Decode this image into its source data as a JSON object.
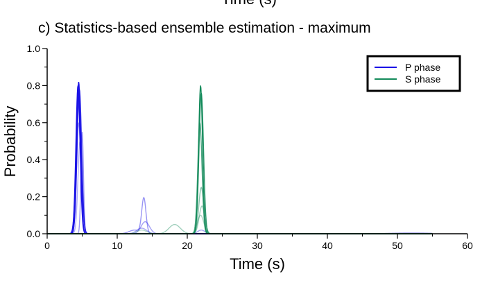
{
  "header_fragment": "Time (s)",
  "chart_data": {
    "type": "line",
    "title": "c) Statistics-based ensemble estimation - maximum",
    "xlabel": "Time (s)",
    "ylabel": "Probability",
    "xlim": [
      0,
      60
    ],
    "ylim": [
      0,
      1.0
    ],
    "xticks": [
      0,
      10,
      20,
      30,
      40,
      50,
      60
    ],
    "xtick_labels": [
      "0",
      "10",
      "20",
      "30",
      "40",
      "50",
      "60"
    ],
    "yticks": [
      0.0,
      0.2,
      0.4,
      0.6,
      0.8,
      1.0
    ],
    "ytick_labels": [
      "0.0",
      "0.2",
      "0.4",
      "0.6",
      "0.8",
      "1.0"
    ],
    "grid": false,
    "legend_position": "top-right",
    "colors": {
      "p_phase": "#1a12e6",
      "s_phase": "#138a5a"
    },
    "legend": [
      {
        "label": "P phase",
        "color": "#1a12e6"
      },
      {
        "label": "S phase",
        "color": "#138a5a"
      }
    ],
    "series": [
      {
        "name": "P phase",
        "color": "#1a12e6",
        "opacity": 1.0,
        "peaks": [
          {
            "center": 4.5,
            "height": 0.82,
            "width": 0.28
          }
        ]
      },
      {
        "color": "#1a12e6",
        "opacity": 1.0,
        "peaks": [
          {
            "center": 4.4,
            "height": 0.8,
            "width": 0.3
          }
        ]
      },
      {
        "color": "#1a12e6",
        "opacity": 0.85,
        "peaks": [
          {
            "center": 4.6,
            "height": 0.78,
            "width": 0.32
          }
        ]
      },
      {
        "color": "#1a12e6",
        "opacity": 0.7,
        "peaks": [
          {
            "center": 4.5,
            "height": 0.74,
            "width": 0.35
          }
        ]
      },
      {
        "color": "#1a12e6",
        "opacity": 0.45,
        "peaks": [
          {
            "center": 5.0,
            "height": 0.55,
            "width": 0.18
          },
          {
            "center": 13.8,
            "height": 0.19,
            "width": 0.3
          },
          {
            "center": 12.5,
            "height": 0.02,
            "width": 0.8
          }
        ]
      },
      {
        "color": "#1a12e6",
        "opacity": 0.4,
        "peaks": [
          {
            "center": 4.5,
            "height": 0.6,
            "width": 0.3
          },
          {
            "center": 14.0,
            "height": 0.065,
            "width": 0.6
          },
          {
            "center": 22.0,
            "height": 0.02,
            "width": 0.5
          }
        ]
      },
      {
        "color": "#1a12e6",
        "opacity": 0.35,
        "peaks": [
          {
            "center": 4.7,
            "height": 0.5,
            "width": 0.3
          },
          {
            "center": 13.5,
            "height": 0.03,
            "width": 0.7
          },
          {
            "center": 52.0,
            "height": 0.005,
            "width": 3.0
          }
        ]
      },
      {
        "name": "S phase",
        "color": "#138a5a",
        "opacity": 1.0,
        "peaks": [
          {
            "center": 21.9,
            "height": 0.8,
            "width": 0.28
          }
        ]
      },
      {
        "color": "#138a5a",
        "opacity": 0.9,
        "peaks": [
          {
            "center": 22.0,
            "height": 0.76,
            "width": 0.32
          }
        ]
      },
      {
        "color": "#138a5a",
        "opacity": 0.75,
        "peaks": [
          {
            "center": 21.8,
            "height": 0.6,
            "width": 0.3
          }
        ]
      },
      {
        "color": "#138a5a",
        "opacity": 0.5,
        "peaks": [
          {
            "center": 22.0,
            "height": 0.25,
            "width": 0.35
          }
        ]
      },
      {
        "color": "#138a5a",
        "opacity": 0.4,
        "peaks": [
          {
            "center": 18.2,
            "height": 0.05,
            "width": 0.8
          },
          {
            "center": 22.1,
            "height": 0.15,
            "width": 0.4
          }
        ]
      },
      {
        "color": "#138a5a",
        "opacity": 0.35,
        "peaks": [
          {
            "center": 13.5,
            "height": 0.02,
            "width": 0.7
          },
          {
            "center": 21.9,
            "height": 0.1,
            "width": 0.45
          }
        ]
      }
    ]
  }
}
